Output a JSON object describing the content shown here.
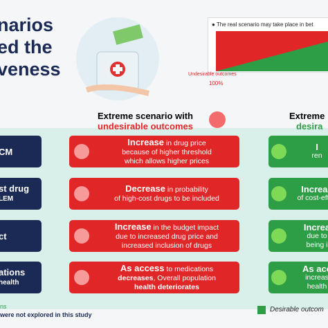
{
  "title": {
    "lines": [
      "narios",
      "ed the",
      "veness"
    ]
  },
  "chart": {
    "legend": "The real scenario may take place in bet",
    "axis_label": "Undesirable outcomes",
    "axis_value": "100%"
  },
  "columns": {
    "left": {
      "line1": "Extreme scenario with",
      "line2": "undesirable outcomes"
    },
    "right": {
      "line1": "Extreme",
      "line2": "desira"
    }
  },
  "rows": [
    {
      "label": [
        "CM"
      ],
      "red": [
        [
          {
            "t": "Increase",
            "b": true
          },
          {
            "t": " in drug price"
          }
        ],
        [
          {
            "t": "because of higher threshold"
          }
        ],
        [
          {
            "t": "which allows higher prices"
          }
        ]
      ],
      "green": [
        "I",
        "ren"
      ]
    },
    {
      "label": [
        "st drug",
        "LEM"
      ],
      "red": [
        [
          {
            "t": "Decrease",
            "b": true
          },
          {
            "t": " in probability"
          }
        ],
        [
          {
            "t": "of high-cost drugs to be included"
          }
        ]
      ],
      "green": [
        "Increas",
        "of cost-effec"
      ]
    },
    {
      "label": [
        "ct"
      ],
      "red": [
        [
          {
            "t": "Increase",
            "b": true
          },
          {
            "t": " in the budget impact"
          }
        ],
        [
          {
            "t": "due to increased drug price and"
          }
        ],
        [
          {
            "t": "increased inclusion of drugs"
          }
        ]
      ],
      "green": [
        "Increa",
        "due to",
        "being i"
      ]
    },
    {
      "label": [
        "ations",
        "health"
      ],
      "red": [
        [
          {
            "t": "As access",
            "b": true
          },
          {
            "t": " to medications"
          }
        ],
        [
          {
            "t": "decreases",
            "b": true
          },
          {
            "t": ", Overall population"
          }
        ],
        [
          {
            "t": "health",
            "b": true
          },
          {
            "t": " deteriorates",
            "b": true
          }
        ]
      ],
      "green": [
        "As acc",
        "increas",
        "health"
      ]
    }
  ],
  "footer": {
    "line1": "ns",
    "line2": "were not explored in this study",
    "legend": "Desirable outcom"
  }
}
